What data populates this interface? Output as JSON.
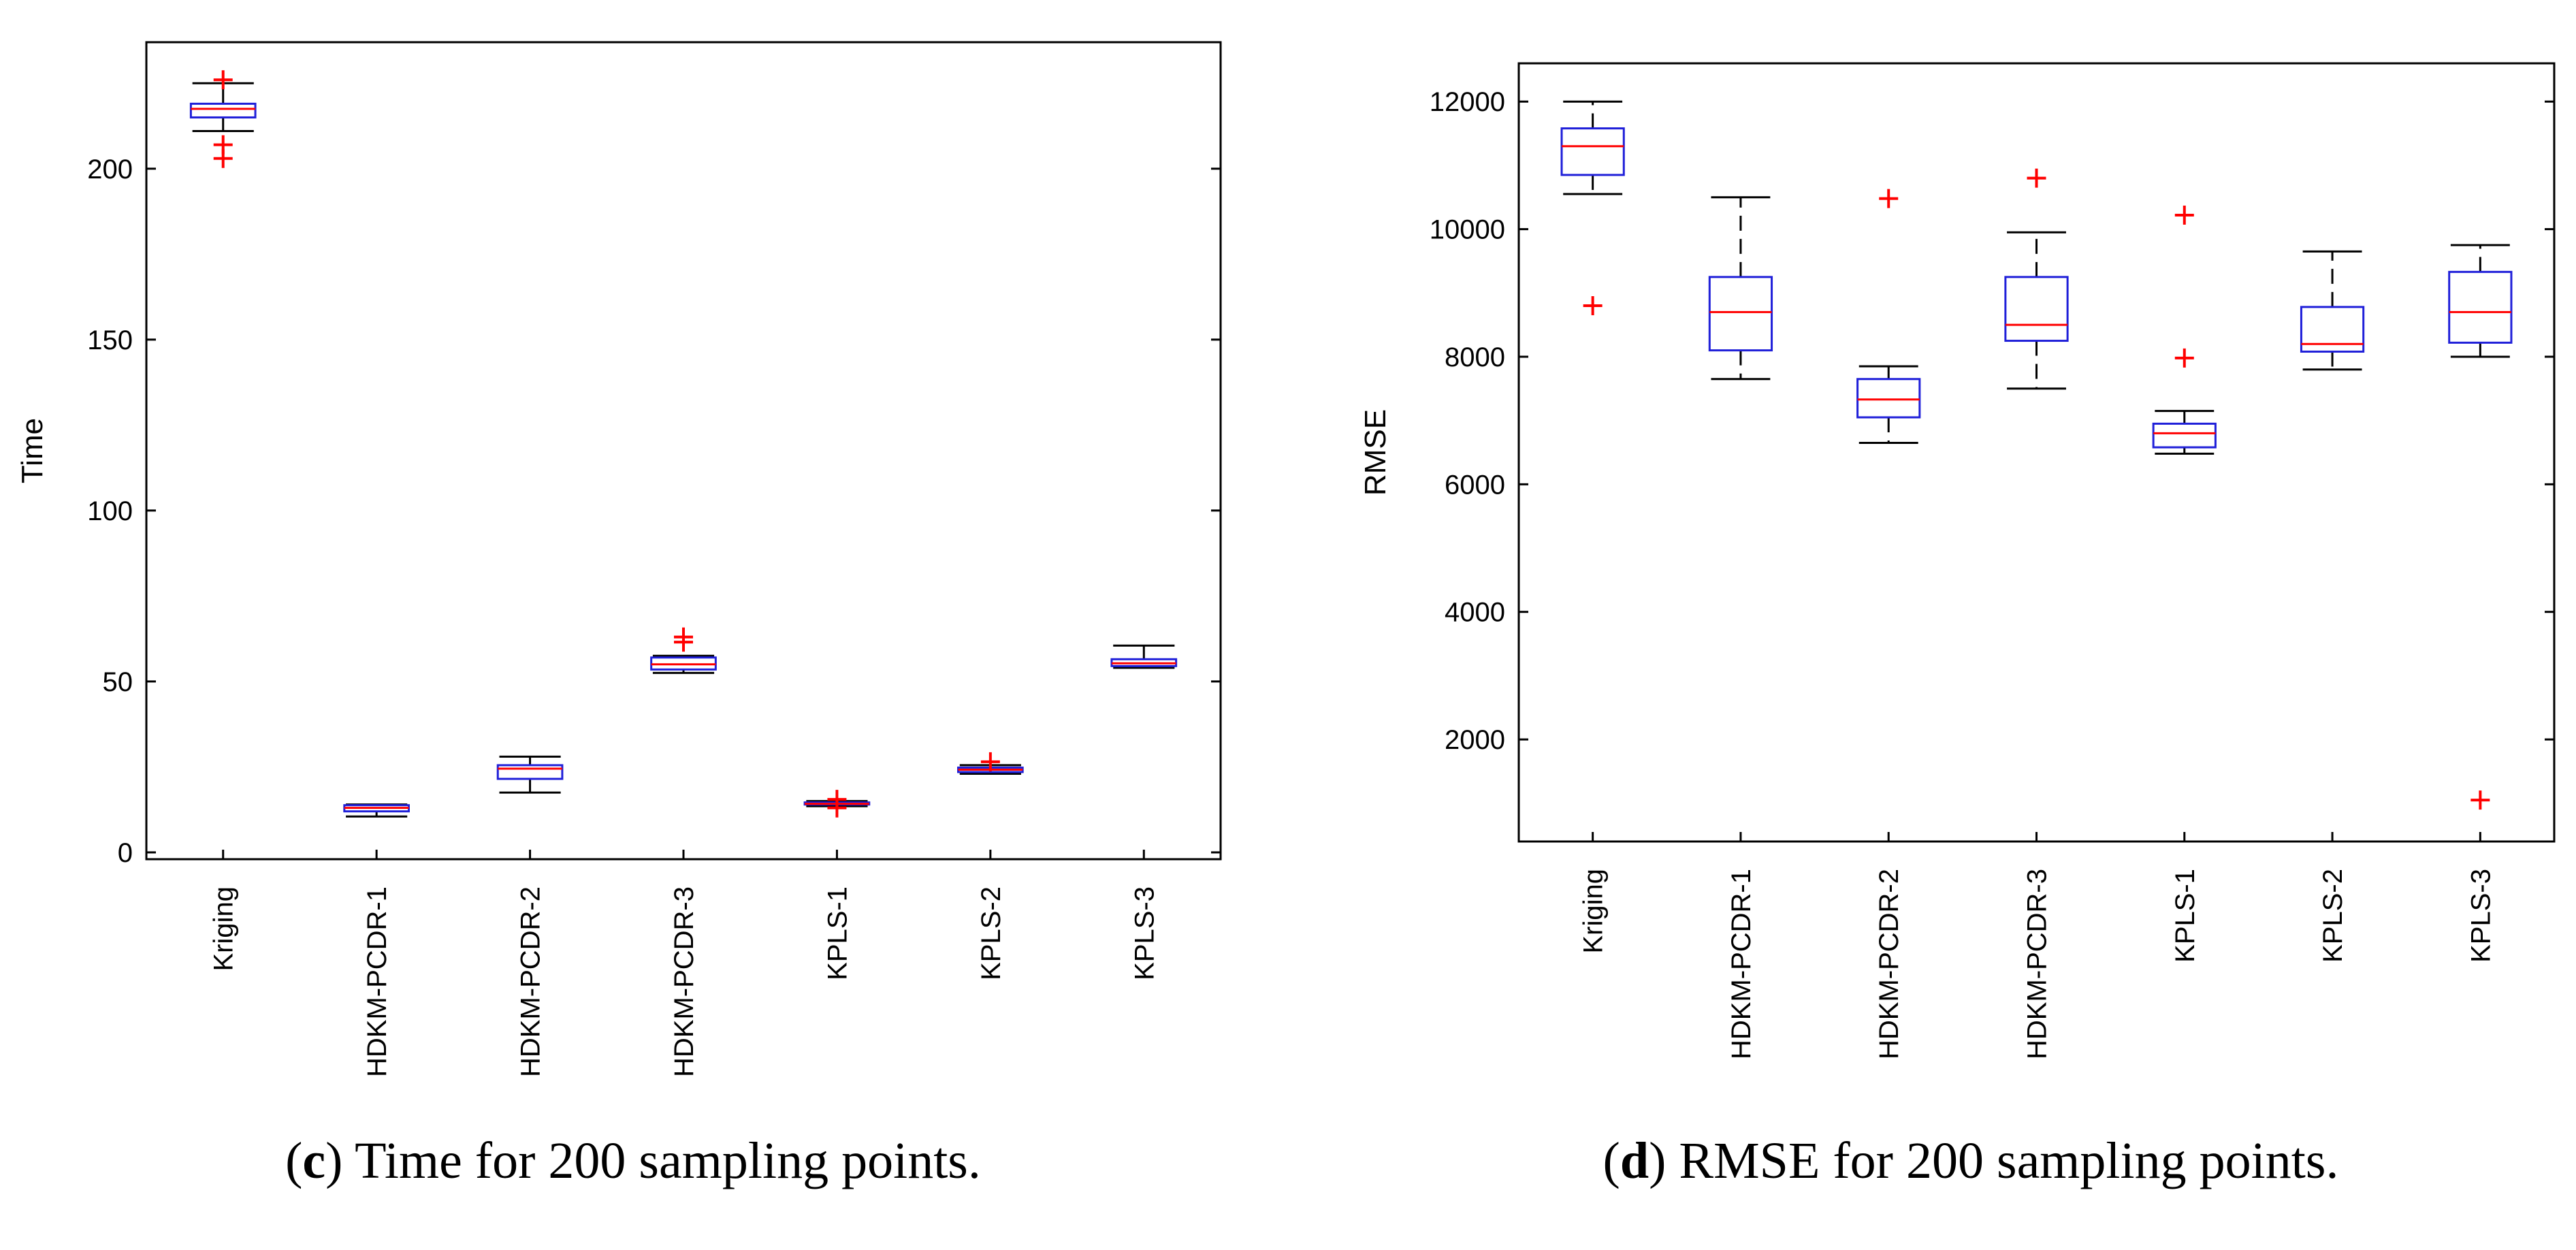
{
  "colors": {
    "box": "#1f1fd9",
    "median": "#ff0000",
    "whisker": "#000000",
    "outlier": "#ff0000",
    "axis": "#000000"
  },
  "chart_data": [
    {
      "type": "boxplot",
      "title": "",
      "xlabel": "",
      "ylabel": "Time",
      "ylim": [
        -2,
        237
      ],
      "yticks": [
        0,
        50,
        100,
        150,
        200
      ],
      "ytick_labels": [
        "0",
        "50",
        "100",
        "150",
        "200"
      ],
      "categories": [
        "Kriging",
        "HDKM-PCDR-1",
        "HDKM-PCDR-2",
        "HDKM-PCDR-3",
        "KPLS-1",
        "KPLS-2",
        "KPLS-3"
      ],
      "boxes": [
        {
          "whisker_low": 211,
          "q1": 215,
          "median": 217.5,
          "q3": 219,
          "whisker_high": 225,
          "outliers": [
            226,
            207,
            203
          ]
        },
        {
          "whisker_low": 10.5,
          "q1": 12,
          "median": 13,
          "q3": 13.8,
          "whisker_high": 14,
          "outliers": []
        },
        {
          "whisker_low": 17.5,
          "q1": 21.5,
          "median": 24.5,
          "q3": 25.5,
          "whisker_high": 28,
          "outliers": []
        },
        {
          "whisker_low": 52.5,
          "q1": 53.5,
          "median": 55,
          "q3": 57,
          "whisker_high": 57.5,
          "outliers": [
            63,
            61.5
          ]
        },
        {
          "whisker_low": 13.5,
          "q1": 14,
          "median": 14.2,
          "q3": 14.6,
          "whisker_high": 15,
          "outliers": [
            15.5,
            13
          ]
        },
        {
          "whisker_low": 23,
          "q1": 23.5,
          "median": 24.2,
          "q3": 24.8,
          "whisker_high": 25.5,
          "outliers": [
            26.5
          ]
        },
        {
          "whisker_low": 54,
          "q1": 54.5,
          "median": 55.3,
          "q3": 56.5,
          "whisker_high": 60.5,
          "outliers": []
        }
      ],
      "caption_letter": "c",
      "caption_text": ") Time for 200 sampling points."
    },
    {
      "type": "boxplot",
      "title": "",
      "xlabel": "",
      "ylabel": "RMSE",
      "ylim": [
        400,
        12600
      ],
      "yticks": [
        2000,
        4000,
        6000,
        8000,
        10000,
        12000
      ],
      "ytick_labels": [
        "2000",
        "4000",
        "6000",
        "8000",
        "10000",
        "12000"
      ],
      "categories": [
        "Kriging",
        "HDKM-PCDR-1",
        "HDKM-PCDR-2",
        "HDKM-PCDR-3",
        "KPLS-1",
        "KPLS-2",
        "KPLS-3"
      ],
      "boxes": [
        {
          "whisker_low": 10550,
          "q1": 10850,
          "median": 11300,
          "q3": 11580,
          "whisker_high": 12000,
          "outliers": [
            8800
          ]
        },
        {
          "whisker_low": 7650,
          "q1": 8100,
          "median": 8700,
          "q3": 9250,
          "whisker_high": 10500,
          "outliers": []
        },
        {
          "whisker_low": 6650,
          "q1": 7050,
          "median": 7330,
          "q3": 7650,
          "whisker_high": 7850,
          "outliers": [
            10480
          ]
        },
        {
          "whisker_low": 7500,
          "q1": 8250,
          "median": 8500,
          "q3": 9250,
          "whisker_high": 9950,
          "outliers": [
            10800
          ]
        },
        {
          "whisker_low": 6480,
          "q1": 6580,
          "median": 6800,
          "q3": 6950,
          "whisker_high": 7150,
          "outliers": [
            10220,
            7980
          ]
        },
        {
          "whisker_low": 7800,
          "q1": 8080,
          "median": 8200,
          "q3": 8780,
          "whisker_high": 9650,
          "outliers": []
        },
        {
          "whisker_low": 8000,
          "q1": 8220,
          "median": 8700,
          "q3": 9330,
          "whisker_high": 9750,
          "outliers": [
            1050
          ]
        }
      ],
      "caption_letter": "d",
      "caption_text": ") RMSE for 200 sampling points."
    }
  ]
}
